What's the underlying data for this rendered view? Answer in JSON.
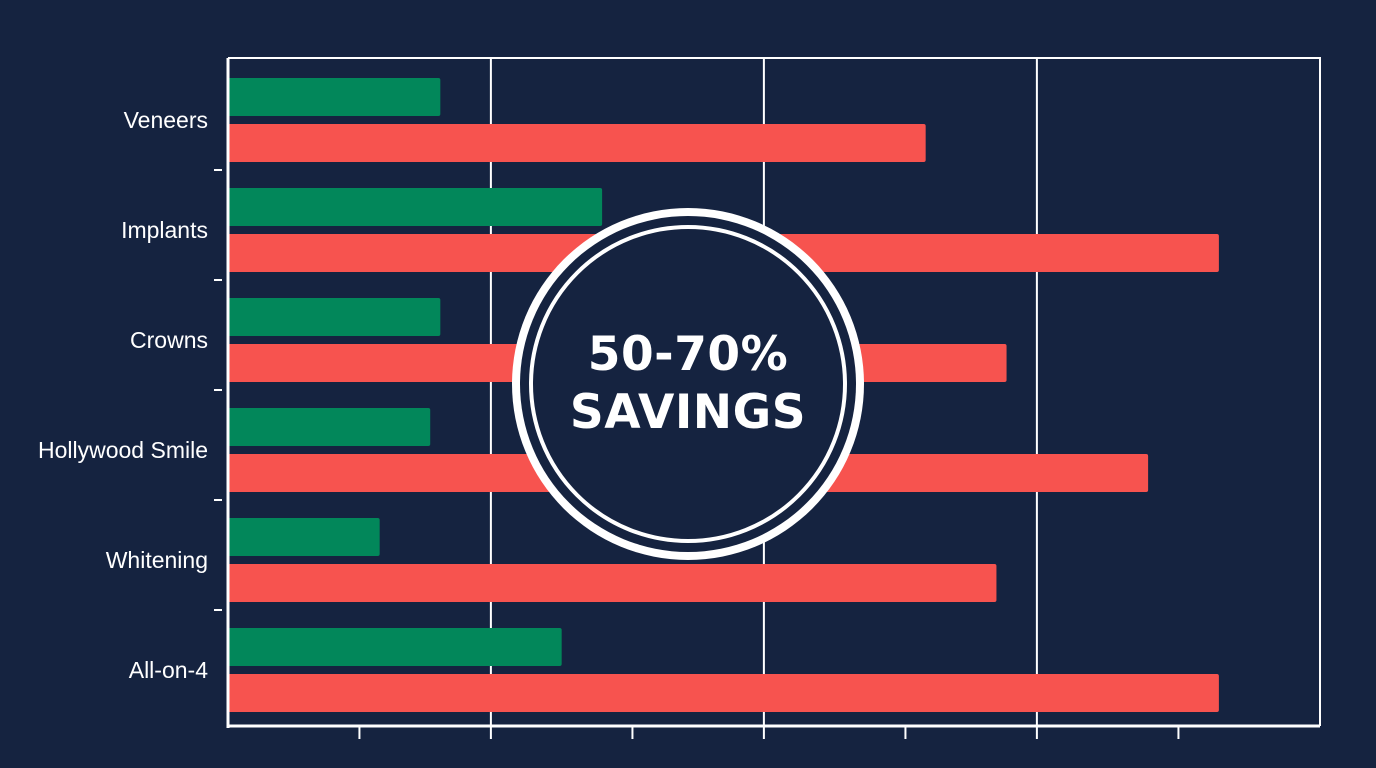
{
  "chart_data": {
    "type": "bar",
    "orientation": "horizontal",
    "categories": [
      "Veneers",
      "Implants",
      "Crowns",
      "Hollywood Smile",
      "Whitening",
      "All-on-4"
    ],
    "series": [
      {
        "values": [
          2.1,
          3.7,
          2.1,
          2.0,
          1.5,
          3.3
        ]
      },
      {
        "values": [
          6.9,
          9.8,
          7.7,
          9.1,
          7.6,
          9.8
        ]
      }
    ],
    "xlim": [
      0,
      10.8
    ],
    "x_ticks": [
      1.3,
      2.6,
      4.0,
      5.3,
      6.7,
      8.0,
      9.4
    ],
    "x_gridlines": [
      2.6,
      5.3,
      8.0
    ],
    "grid": "vertical",
    "legend": "none"
  },
  "colors": {
    "background": "#152340",
    "series_1": "#02875A",
    "series_2": "#F7534F",
    "axis": "#ffffff",
    "gridline": "#ffffff"
  },
  "badge": {
    "line1": "50-70%",
    "line2": "SAVINGS"
  }
}
